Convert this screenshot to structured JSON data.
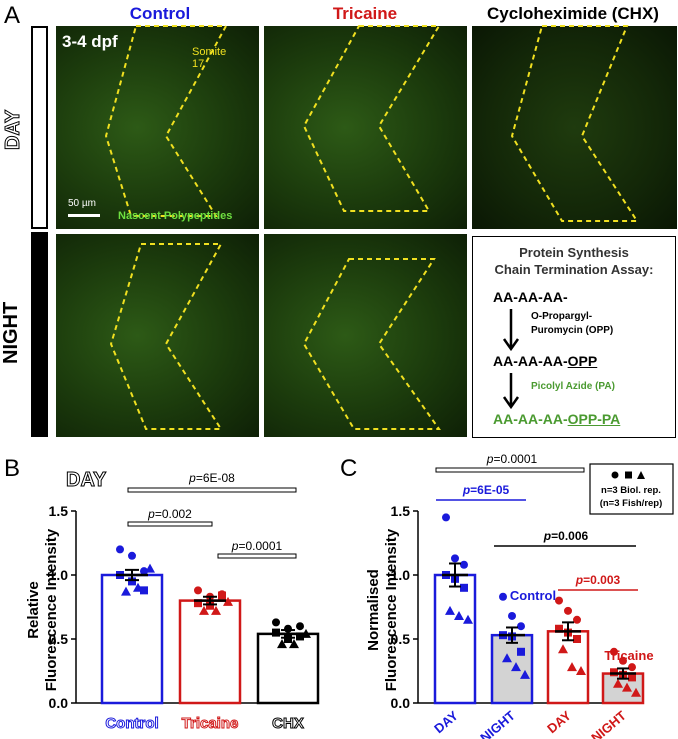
{
  "panelA": {
    "letter": "A",
    "col_headers": [
      {
        "text": "Control",
        "color": "#1a1adb"
      },
      {
        "text": "Tricaine",
        "color": "#d01818"
      },
      {
        "text": "Cycloheximide (CHX)",
        "color": "#000000"
      }
    ],
    "row_labels": [
      "DAY",
      "NIGHT"
    ],
    "age_label": "3-4 dpf",
    "somite_label": "Somite\n17",
    "scalebar_label": "50 µm",
    "stain_label": "Nascent Polypeptides",
    "scheme": {
      "title_line1": "Protein Synthesis",
      "title_line2": "Chain Termination Assay:",
      "step1": "AA-AA-AA-",
      "reagent1_line1": "O-Propargyl-",
      "reagent1_line2": "Puromycin (OPP)",
      "step2_prefix": "AA-AA-AA-",
      "step2_suffix": "OPP",
      "reagent2": "Picolyl Azide (PA)",
      "step3_prefix": "AA-AA-AA-",
      "step3_suffix": "OPP-PA",
      "green": "#4a9a30"
    }
  },
  "panelB": {
    "letter": "B",
    "title": "DAY",
    "ylabel_line1": "Relative",
    "ylabel_line2": "Fluorescence Intensity",
    "yticks": [
      "0.0",
      "0.5",
      "1.0",
      "1.5"
    ],
    "p_values": [
      "p=6E-08",
      "p=0.002",
      "p=0.0001"
    ]
  },
  "panelC": {
    "letter": "C",
    "ylabel_line1": "Normalised",
    "ylabel_line2": "Fluorescence Intensity",
    "yticks": [
      "0.0",
      "0.5",
      "1.0",
      "1.5"
    ],
    "p_values": [
      "p=0.0001",
      "p=6E-05",
      "p=0.006",
      "p=0.003"
    ],
    "group_labels": [
      "Control",
      "Tricaine"
    ],
    "legend_line1": "n=3 Biol. rep.",
    "legend_line2": "(n=3 Fish/rep)"
  },
  "chart_data": [
    {
      "type": "bar",
      "title": "DAY",
      "categories": [
        "Control",
        "Tricaine",
        "CHX"
      ],
      "values": [
        1.0,
        0.8,
        0.54
      ],
      "errors": [
        0.04,
        0.03,
        0.03
      ],
      "colors": [
        "#1a1adb",
        "#d01818",
        "#000000"
      ],
      "points": [
        [
          1.2,
          1.15,
          1.03,
          1.0,
          0.95,
          0.88,
          0.87,
          0.9,
          1.05
        ],
        [
          0.88,
          0.83,
          0.85,
          0.78,
          0.76,
          0.84,
          0.72,
          0.72,
          0.79
        ],
        [
          0.63,
          0.58,
          0.6,
          0.55,
          0.5,
          0.52,
          0.46,
          0.46,
          0.54
        ]
      ],
      "ylim": [
        0,
        1.5
      ],
      "ylabel": "Relative Fluorescence Intensity",
      "xlabel": ""
    },
    {
      "type": "bar",
      "categories": [
        "DAY",
        "NIGHT",
        "DAY",
        "NIGHT"
      ],
      "category_colors": [
        "#1a1adb",
        "#1a1adb",
        "#d01818",
        "#d01818"
      ],
      "values": [
        1.0,
        0.53,
        0.56,
        0.23
      ],
      "errors": [
        0.09,
        0.06,
        0.07,
        0.04
      ],
      "fills": [
        "#ffffff",
        "#d3d3d3",
        "#ffffff",
        "#d3d3d3"
      ],
      "points": [
        [
          1.45,
          1.13,
          1.08,
          1.0,
          0.97,
          0.9,
          0.72,
          0.68,
          0.65
        ],
        [
          0.83,
          0.68,
          0.6,
          0.53,
          0.52,
          0.4,
          0.35,
          0.28,
          0.22
        ],
        [
          0.8,
          0.72,
          0.65,
          0.58,
          0.55,
          0.5,
          0.42,
          0.28,
          0.25
        ],
        [
          0.4,
          0.33,
          0.28,
          0.24,
          0.22,
          0.2,
          0.15,
          0.12,
          0.08
        ]
      ],
      "ylim": [
        0,
        1.5
      ],
      "ylabel": "Normalised Fluorescence Intensity",
      "xlabel": ""
    }
  ]
}
